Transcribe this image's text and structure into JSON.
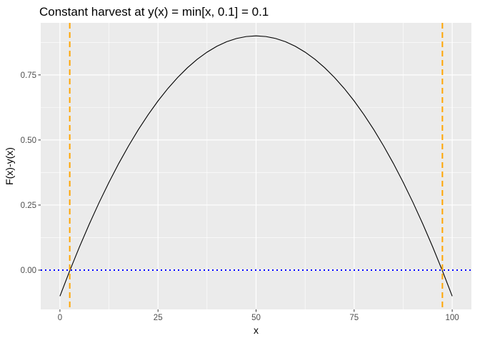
{
  "chart_data": {
    "type": "line",
    "title": "Constant harvest at y(x) = min[x, 0.1] = 0.1",
    "xlabel": "x",
    "ylabel": "F(x)-y(x)",
    "xlim": [
      -4.9,
      104.9
    ],
    "ylim": [
      -0.151,
      0.95
    ],
    "x_ticks": [
      0,
      25,
      50,
      75,
      100
    ],
    "x_tick_labels": [
      "0",
      "25",
      "50",
      "75",
      "100"
    ],
    "y_ticks": [
      0.0,
      0.25,
      0.5,
      0.75
    ],
    "y_tick_labels": [
      "0.00",
      "0.25",
      "0.50",
      "0.75"
    ],
    "grid": true,
    "panel_background": "#ebebeb",
    "gridline_color": "#ffffff",
    "series": [
      {
        "color": "#000000",
        "style": "solid",
        "x": [
          0,
          2.5,
          5,
          7.5,
          10,
          12.5,
          15,
          17.5,
          20,
          22.5,
          25,
          27.5,
          30,
          32.5,
          35,
          37.5,
          40,
          42.5,
          45,
          47.5,
          50,
          52.5,
          55,
          57.5,
          60,
          62.5,
          65,
          67.5,
          70,
          72.5,
          75,
          77.5,
          80,
          82.5,
          85,
          87.5,
          90,
          92.5,
          95,
          97.5,
          100
        ],
        "y": [
          -0.1,
          -0.0025,
          0.09,
          0.1775,
          0.26,
          0.3375,
          0.41,
          0.4775,
          0.54,
          0.5975,
          0.65,
          0.6975,
          0.74,
          0.7775,
          0.81,
          0.8375,
          0.86,
          0.8775,
          0.89,
          0.8975,
          0.9,
          0.8975,
          0.89,
          0.8775,
          0.86,
          0.8375,
          0.81,
          0.7775,
          0.74,
          0.6975,
          0.65,
          0.5975,
          0.54,
          0.4775,
          0.41,
          0.3375,
          0.26,
          0.1775,
          0.09,
          -0.0025,
          -0.1
        ]
      }
    ],
    "hlines": [
      {
        "y": 0,
        "color": "#0000ff",
        "style": "dotted"
      }
    ],
    "vlines": [
      {
        "x": 2.5,
        "color": "#ffa500",
        "style": "dashed"
      },
      {
        "x": 97.5,
        "color": "#ffa500",
        "style": "dashed"
      }
    ]
  }
}
